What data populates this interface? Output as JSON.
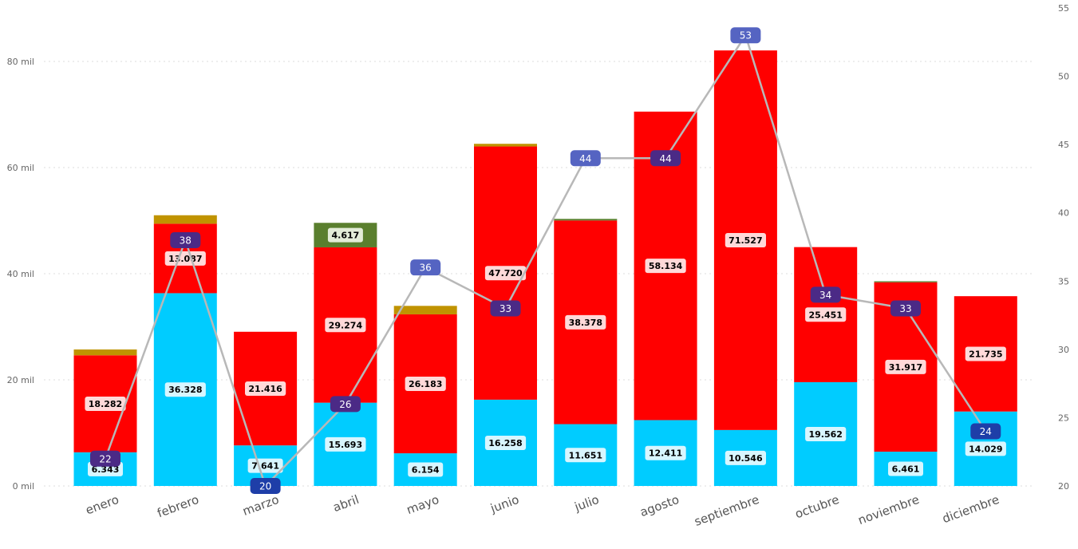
{
  "chart_data": {
    "type": "bar",
    "stacked": true,
    "combo_line": true,
    "categories": [
      "enero",
      "febrero",
      "marzo",
      "abril",
      "mayo",
      "junio",
      "julio",
      "agosto",
      "septiembre",
      "octubre",
      "noviembre",
      "diciembre"
    ],
    "series": [
      {
        "color": "#00ccff",
        "values": [
          6343,
          36328,
          7641,
          15693,
          6154,
          16258,
          11651,
          12411,
          10546,
          19562,
          6461,
          14029
        ],
        "labels": [
          "6.343",
          "36.328",
          "7.641",
          "15.693",
          "6.154",
          "16.258",
          "11.651",
          "12.411",
          "10.546",
          "19.562",
          "6.461",
          "14.029"
        ]
      },
      {
        "color": "#ff0000",
        "values": [
          18282,
          13087,
          21416,
          29274,
          26183,
          47720,
          38378,
          58134,
          71527,
          25451,
          31917,
          21735
        ],
        "labels": [
          "18.282",
          "13.087",
          "21.416",
          "29.274",
          "26.183",
          "47.720",
          "38.378",
          "58.134",
          "71.527",
          "25.451",
          "31.917",
          "21.735"
        ]
      },
      {
        "color": "#5a7f2e",
        "values": [
          0,
          0,
          0,
          4617,
          0,
          0,
          300,
          0,
          0,
          0,
          200,
          0
        ],
        "labels": [
          "",
          "",
          "",
          "4.617",
          "",
          "",
          "",
          "",
          "",
          "",
          "",
          ""
        ]
      },
      {
        "color": "#c09300",
        "values": [
          1100,
          1600,
          0,
          0,
          1600,
          500,
          0,
          0,
          0,
          0,
          0,
          0
        ],
        "labels": [
          "",
          "",
          "",
          "",
          "",
          "",
          "",
          "",
          "",
          "",
          "",
          ""
        ]
      }
    ],
    "line": {
      "color": "#b8b8b8",
      "values": [
        22,
        38,
        20,
        26,
        36,
        33,
        44,
        44,
        53,
        34,
        33,
        24
      ],
      "labels": [
        "22",
        "38",
        "20",
        "26",
        "36",
        "33",
        "44",
        "44",
        "53",
        "34",
        "33",
        "24"
      ],
      "marker_colors": [
        "#4b2a86",
        "#4b2a86",
        "#1e3ea8",
        "#4b2a86",
        "#5564c2",
        "#4b2a86",
        "#5564c2",
        "#4b2a86",
        "#5564c2",
        "#4b2a86",
        "#4b2a86",
        "#1e3ea8"
      ]
    },
    "y_left": {
      "min": 0,
      "max": 80000,
      "ticks": [
        0,
        20000,
        40000,
        60000,
        80000
      ],
      "tick_labels": [
        "0 mil",
        "20 mil",
        "40 mil",
        "60 mil",
        "80 mil"
      ]
    },
    "y_right": {
      "min": 20,
      "max": 55,
      "ticks": [
        20,
        25,
        30,
        35,
        40,
        45,
        50,
        55
      ],
      "tick_labels": [
        "20",
        "25",
        "30",
        "35",
        "40",
        "45",
        "50",
        "55"
      ]
    },
    "grid": true,
    "title": "",
    "xlabel": "",
    "ylabel": ""
  }
}
